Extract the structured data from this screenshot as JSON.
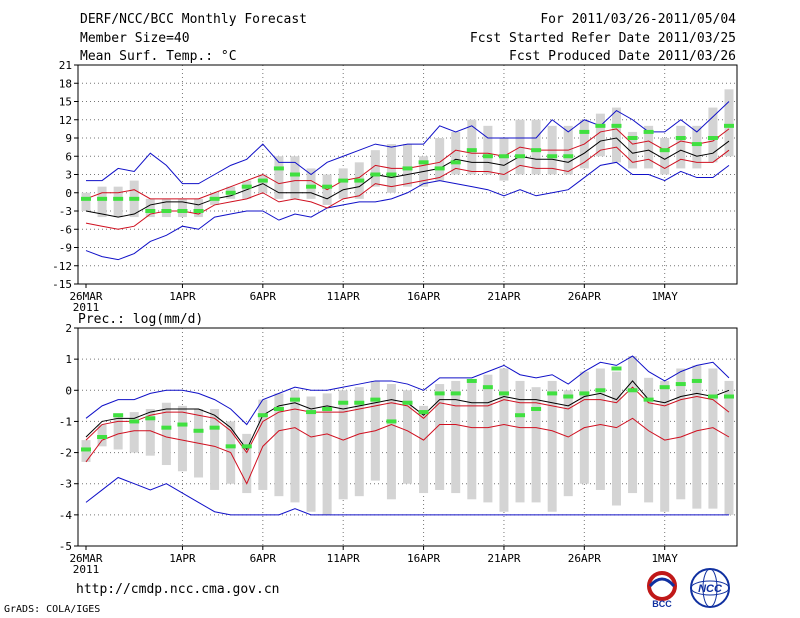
{
  "header": {
    "title": "DERF/NCC/BCC Monthly Forecast",
    "member_size": "Member Size=40",
    "variable": "Mean Surf. Temp.: °C",
    "period": "For 2011/03/26-2011/05/04",
    "started": "Fcst Started Refer Date 2011/03/25",
    "produced": "Fcst Produced Date 2011/03/26"
  },
  "footer": {
    "url": "http://cmdp.ncc.cma.gov.cn",
    "grads": "GrADS: COLA/IGES",
    "logo_bcc": "BCC",
    "logo_ncc": "NCC"
  },
  "colors": {
    "mean": "#000000",
    "spread": "#d01020",
    "extreme": "#1010c8",
    "box": "#d4d4d4",
    "median": "#40e040",
    "grid": "#777777"
  },
  "chart_data": [
    {
      "type": "line",
      "title": "Mean Surf. Temp.: °C",
      "ylim": [
        -15,
        21
      ],
      "yticks": [
        -15,
        -12,
        -9,
        -6,
        -3,
        0,
        3,
        6,
        9,
        12,
        15,
        18,
        21
      ],
      "xticks": [
        {
          "day": 0,
          "label": "26MAR",
          "sub": "2011"
        },
        {
          "day": 6,
          "label": "1APR"
        },
        {
          "day": 11,
          "label": "6APR"
        },
        {
          "day": 16,
          "label": "11APR"
        },
        {
          "day": 21,
          "label": "16APR"
        },
        {
          "day": 26,
          "label": "21APR"
        },
        {
          "day": 31,
          "label": "26APR"
        },
        {
          "day": 36,
          "label": "1MAY"
        }
      ],
      "days": 40,
      "series": [
        {
          "name": "ensemble mean",
          "role": "mean",
          "values": [
            -3,
            -3.5,
            -4,
            -3.5,
            -2,
            -1.5,
            -1.5,
            -2,
            -1,
            -0.5,
            0.5,
            1.5,
            0,
            0,
            0,
            -1,
            0.5,
            1,
            3,
            2.5,
            3,
            3.5,
            4,
            5.5,
            5,
            5,
            4.5,
            6,
            5.5,
            5.5,
            5,
            6.5,
            8.5,
            9,
            6.5,
            7,
            5.5,
            7,
            6,
            6.5,
            8.5
          ]
        },
        {
          "name": "upper spread",
          "role": "spread",
          "values": [
            -1,
            0,
            0,
            0.5,
            -1,
            -1,
            -1,
            -1,
            0,
            1,
            2,
            3,
            1.5,
            2,
            2,
            0.5,
            2,
            2.5,
            4.5,
            4,
            4,
            4.5,
            5,
            7,
            6.5,
            6.5,
            6,
            7.5,
            7,
            7,
            7,
            8,
            10,
            10.5,
            8,
            8.5,
            7,
            8.5,
            8,
            8.5,
            10.5
          ]
        },
        {
          "name": "lower spread",
          "role": "spread",
          "values": [
            -5,
            -5.5,
            -6,
            -5.5,
            -3.5,
            -3,
            -3,
            -3.5,
            -2,
            -1.5,
            -1,
            0,
            -1.5,
            -1,
            -1.5,
            -2.5,
            -1,
            -0.5,
            1.5,
            1,
            1.5,
            2,
            2.5,
            4,
            3.5,
            3.5,
            3,
            4.5,
            4,
            4,
            3.5,
            5,
            7,
            7.5,
            5,
            5.5,
            4,
            5.5,
            5,
            5,
            7
          ]
        },
        {
          "name": "ensemble max",
          "role": "extreme",
          "values": [
            2,
            2,
            4,
            3.5,
            6.5,
            4.5,
            1.5,
            1.5,
            3,
            4.5,
            5.5,
            8,
            5,
            5,
            3,
            5,
            6,
            7,
            8,
            7.5,
            8,
            8,
            11,
            10,
            11,
            9,
            9,
            9,
            9,
            12,
            10,
            12,
            11,
            13.5,
            12,
            10,
            10,
            12,
            10,
            12.5,
            15
          ]
        },
        {
          "name": "ensemble min",
          "role": "extreme",
          "values": [
            -9.5,
            -10.5,
            -11,
            -10,
            -8,
            -7,
            -5.5,
            -6,
            -4,
            -3.5,
            -3,
            -3,
            -4.5,
            -3.5,
            -4,
            -2.5,
            -2,
            -1.5,
            -1.5,
            -1,
            0,
            1.5,
            2,
            1.5,
            1,
            0.5,
            -0.5,
            0.5,
            -0.5,
            0,
            0.5,
            2.5,
            4.5,
            5,
            3,
            3,
            2,
            3.5,
            2.5,
            2.5,
            4.5
          ]
        }
      ],
      "boxes": {
        "low": [
          -3,
          -4,
          -4,
          -4,
          -4,
          -4,
          -4,
          -4,
          -2,
          -1,
          -1,
          0,
          -1,
          -1,
          -1,
          -2,
          -1,
          -1,
          1,
          0,
          1,
          1,
          2,
          3,
          3,
          3,
          2,
          3,
          3,
          3,
          3,
          4,
          6,
          5,
          4,
          4,
          3,
          4,
          4,
          5,
          6
        ],
        "high": [
          0,
          1,
          1,
          2,
          -1,
          -1,
          -1,
          -1,
          0,
          1,
          2,
          3,
          6,
          6,
          4,
          3,
          4,
          5,
          7,
          8,
          8,
          6,
          9,
          10,
          12,
          11,
          9,
          12,
          12,
          11,
          11,
          12,
          13,
          14,
          10,
          11,
          9,
          11,
          11,
          14,
          17
        ],
        "median": [
          -1,
          -1,
          -1,
          -1,
          -3,
          -3,
          -3,
          -3,
          -1,
          0,
          1,
          2,
          4,
          3,
          1,
          1,
          2,
          2,
          3,
          3,
          4,
          5,
          4,
          5,
          7,
          6,
          6,
          6,
          7,
          6,
          6,
          10,
          11,
          11,
          9,
          10,
          7,
          9,
          8,
          9,
          11
        ]
      }
    },
    {
      "type": "line",
      "title": "Prec.: log(mm/d)",
      "ylim": [
        -5,
        2
      ],
      "yticks": [
        -5,
        -4,
        -3,
        -2,
        -1,
        0,
        1,
        2
      ],
      "xticks": [
        {
          "day": 0,
          "label": "26MAR",
          "sub": "2011"
        },
        {
          "day": 6,
          "label": "1APR"
        },
        {
          "day": 11,
          "label": "6APR"
        },
        {
          "day": 16,
          "label": "11APR"
        },
        {
          "day": 21,
          "label": "16APR"
        },
        {
          "day": 26,
          "label": "21APR"
        },
        {
          "day": 31,
          "label": "26APR"
        },
        {
          "day": 36,
          "label": "1MAY"
        }
      ],
      "days": 40,
      "series": [
        {
          "name": "ensemble mean",
          "role": "mean",
          "values": [
            -1.5,
            -1.0,
            -0.9,
            -0.9,
            -0.7,
            -0.6,
            -0.6,
            -0.6,
            -0.8,
            -1.2,
            -1.9,
            -0.8,
            -0.5,
            -0.4,
            -0.6,
            -0.5,
            -0.6,
            -0.5,
            -0.4,
            -0.3,
            -0.4,
            -0.8,
            -0.3,
            -0.3,
            -0.4,
            -0.4,
            -0.2,
            -0.3,
            -0.3,
            -0.4,
            -0.5,
            -0.2,
            -0.1,
            -0.3,
            0.3,
            -0.3,
            -0.4,
            -0.2,
            -0.1,
            -0.2,
            0.0
          ]
        },
        {
          "name": "upper spread",
          "role": "spread",
          "values": [
            -1.6,
            -1.1,
            -1.0,
            -1.0,
            -0.8,
            -0.7,
            -0.7,
            -0.8,
            -0.9,
            -1.3,
            -2.0,
            -1.0,
            -0.7,
            -0.6,
            -0.7,
            -0.7,
            -0.7,
            -0.6,
            -0.5,
            -0.4,
            -0.5,
            -0.9,
            -0.4,
            -0.5,
            -0.5,
            -0.5,
            -0.3,
            -0.4,
            -0.4,
            -0.5,
            -0.6,
            -0.3,
            -0.3,
            -0.4,
            0.1,
            -0.4,
            -0.5,
            -0.3,
            -0.2,
            -0.3,
            -0.7
          ]
        },
        {
          "name": "lower spread",
          "role": "spread",
          "values": [
            -2.3,
            -1.6,
            -1.4,
            -1.3,
            -1.3,
            -1.5,
            -1.6,
            -1.7,
            -1.8,
            -2.0,
            -3.0,
            -1.8,
            -1.3,
            -1.2,
            -1.5,
            -1.4,
            -1.6,
            -1.4,
            -1.3,
            -1.1,
            -1.3,
            -1.6,
            -1.1,
            -1.1,
            -1.2,
            -1.2,
            -1.1,
            -1.2,
            -1.2,
            -1.3,
            -1.5,
            -1.2,
            -1.1,
            -1.2,
            -0.9,
            -1.3,
            -1.6,
            -1.5,
            -1.3,
            -1.2,
            -1.5
          ]
        },
        {
          "name": "ensemble max",
          "role": "extreme",
          "values": [
            -0.9,
            -0.5,
            -0.3,
            -0.3,
            -0.1,
            0.0,
            0.0,
            -0.1,
            -0.3,
            -0.6,
            -1.1,
            -0.3,
            -0.1,
            0.1,
            0.0,
            0.0,
            0.1,
            0.2,
            0.3,
            0.3,
            0.2,
            0.0,
            0.4,
            0.4,
            0.4,
            0.6,
            0.8,
            0.5,
            0.4,
            0.5,
            0.2,
            0.6,
            0.9,
            0.8,
            1.1,
            0.6,
            0.3,
            0.6,
            0.8,
            0.9,
            0.4
          ]
        },
        {
          "name": "ensemble min",
          "role": "extreme",
          "values": [
            -3.6,
            -3.2,
            -2.8,
            -3.0,
            -3.2,
            -3.0,
            -3.3,
            -3.6,
            -3.9,
            -4.0,
            -4.0,
            -4.0,
            -4.0,
            -3.8,
            -4.0,
            -4.0,
            -4.0,
            -4.0,
            -4.0,
            -4.0,
            -4.0,
            -4.0,
            -4.0,
            -4.0,
            -4.0,
            -4.0,
            -4.0,
            -4.0,
            -4.0,
            -4.0,
            -4.0,
            -4.0,
            -4.0,
            -4.0,
            -4.0,
            -4.0,
            -4.0,
            -4.0,
            -4.0,
            -4.0,
            -4.0
          ]
        }
      ],
      "boxes": {
        "low": [
          -2.3,
          -1.8,
          -1.9,
          -2.0,
          -2.1,
          -2.4,
          -2.6,
          -2.8,
          -3.2,
          -3.0,
          -3.3,
          -3.2,
          -3.4,
          -3.6,
          -3.9,
          -4.0,
          -3.5,
          -3.4,
          -2.9,
          -3.5,
          -3.0,
          -3.3,
          -3.2,
          -3.3,
          -3.5,
          -3.6,
          -3.9,
          -3.6,
          -3.6,
          -3.9,
          -3.4,
          -3.0,
          -3.2,
          -3.7,
          -3.3,
          -3.6,
          -3.9,
          -3.5,
          -3.8,
          -3.8,
          -4.0
        ],
        "high": [
          -1.6,
          -1.1,
          -0.8,
          -0.7,
          -0.6,
          -0.4,
          -0.5,
          -0.6,
          -0.6,
          -1.0,
          -1.4,
          -0.3,
          -0.1,
          0.0,
          -0.2,
          -0.1,
          0.0,
          0.1,
          0.3,
          0.2,
          0.0,
          -0.5,
          0.2,
          0.3,
          0.3,
          0.5,
          0.7,
          0.3,
          0.1,
          0.3,
          0.0,
          0.6,
          0.7,
          0.6,
          1.1,
          0.4,
          0.3,
          0.7,
          0.8,
          0.7,
          0.3
        ],
        "median": [
          -1.9,
          -1.5,
          -0.8,
          -1.0,
          -0.9,
          -1.2,
          -1.1,
          -1.3,
          -1.2,
          -1.8,
          -1.8,
          -0.8,
          -0.6,
          -0.3,
          -0.7,
          -0.6,
          -0.4,
          -0.4,
          -0.3,
          -1.0,
          -0.4,
          -0.7,
          -0.1,
          -0.1,
          0.3,
          0.1,
          -0.1,
          -0.8,
          -0.6,
          -0.1,
          -0.2,
          -0.1,
          0.0,
          0.7,
          0.0,
          -0.3,
          0.1,
          0.2,
          0.3,
          -0.2,
          -0.2
        ]
      }
    }
  ]
}
